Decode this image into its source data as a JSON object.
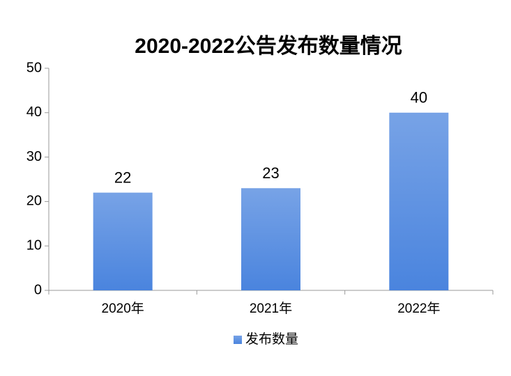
{
  "chart_data": {
    "type": "bar",
    "title": "2020-2022公告发布数量情况",
    "categories": [
      "2020年",
      "2021年",
      "2022年"
    ],
    "series": [
      {
        "name": "发布数量",
        "color": "#4a84de",
        "values": [
          22,
          23,
          40
        ]
      }
    ],
    "ylim": [
      0,
      50
    ],
    "yticks": [
      0,
      10,
      20,
      30,
      40,
      50
    ],
    "grid": false,
    "legend": "bottom"
  }
}
